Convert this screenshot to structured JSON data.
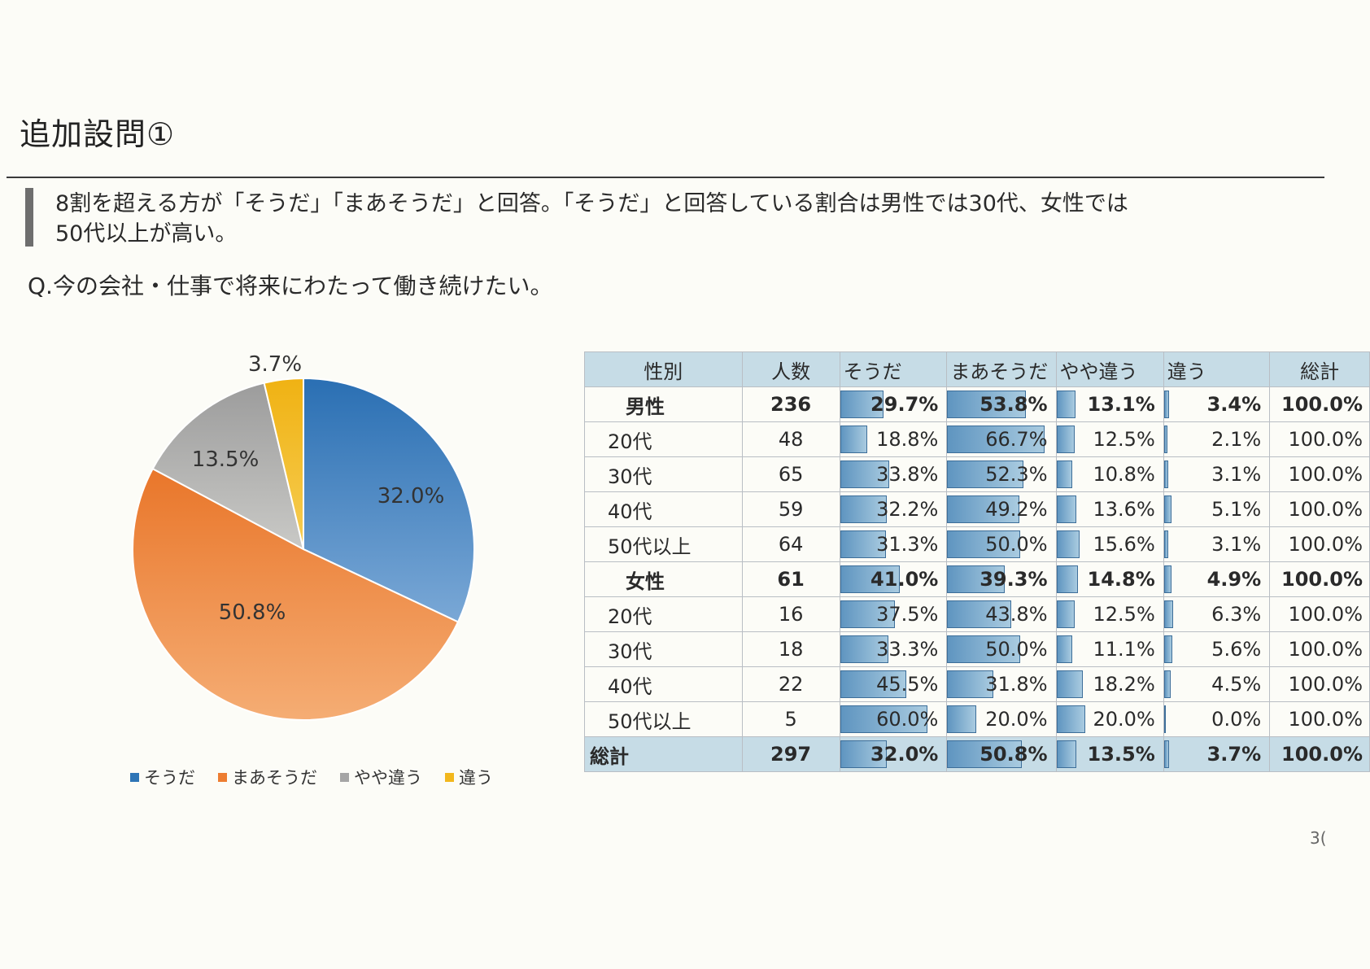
{
  "title": "追加設問①",
  "summary": {
    "line1": "8割を超える方が「そうだ」「まあそうだ」と回答。「そうだ」と回答している割合は男性では30代、女性では",
    "line2": "50代以上が高い。"
  },
  "question": "Q.今の会社・仕事で将来にわたって働き続けたい。",
  "colors": {
    "soda": "#2e75b6",
    "maa": "#ed7d31",
    "yaya": "#a5a5a5",
    "chigau": "#f2b71c",
    "header": "#c6dce6"
  },
  "chart_data": {
    "type": "pie",
    "title": "",
    "slices": [
      {
        "label": "そうだ",
        "value": 32.0,
        "text": "32.0%"
      },
      {
        "label": "まあそうだ",
        "value": 50.8,
        "text": "50.8%"
      },
      {
        "label": "やや違う",
        "value": 13.5,
        "text": "13.5%"
      },
      {
        "label": "違う",
        "value": 3.7,
        "text": "3.7%"
      }
    ],
    "legend": [
      "そうだ",
      "まあそうだ",
      "やや違う",
      "違う"
    ],
    "legend_position": "bottom"
  },
  "table": {
    "headers": [
      "性別",
      "人数",
      "そうだ",
      "まあそうだ",
      "やや違う",
      "違う",
      "総計"
    ],
    "rows": [
      {
        "label": "男性",
        "n": "236",
        "vals": [
          "29.7%",
          "53.8%",
          "13.1%",
          "3.4%"
        ],
        "total": "100.0%",
        "bold": true
      },
      {
        "label": "20代",
        "n": "48",
        "vals": [
          "18.8%",
          "66.7%",
          "12.5%",
          "2.1%"
        ],
        "total": "100.0%"
      },
      {
        "label": "30代",
        "n": "65",
        "vals": [
          "33.8%",
          "52.3%",
          "10.8%",
          "3.1%"
        ],
        "total": "100.0%"
      },
      {
        "label": "40代",
        "n": "59",
        "vals": [
          "32.2%",
          "49.2%",
          "13.6%",
          "5.1%"
        ],
        "total": "100.0%"
      },
      {
        "label": "50代以上",
        "n": "64",
        "vals": [
          "31.3%",
          "50.0%",
          "15.6%",
          "3.1%"
        ],
        "total": "100.0%"
      },
      {
        "label": "女性",
        "n": "61",
        "vals": [
          "41.0%",
          "39.3%",
          "14.8%",
          "4.9%"
        ],
        "total": "100.0%",
        "bold": true
      },
      {
        "label": "20代",
        "n": "16",
        "vals": [
          "37.5%",
          "43.8%",
          "12.5%",
          "6.3%"
        ],
        "total": "100.0%"
      },
      {
        "label": "30代",
        "n": "18",
        "vals": [
          "33.3%",
          "50.0%",
          "11.1%",
          "5.6%"
        ],
        "total": "100.0%"
      },
      {
        "label": "40代",
        "n": "22",
        "vals": [
          "45.5%",
          "31.8%",
          "18.2%",
          "4.5%"
        ],
        "total": "100.0%"
      },
      {
        "label": "50代以上",
        "n": "5",
        "vals": [
          "60.0%",
          "20.0%",
          "20.0%",
          "0.0%"
        ],
        "total": "100.0%"
      }
    ],
    "total_row": {
      "label": "総計",
      "n": "297",
      "vals": [
        "32.0%",
        "50.8%",
        "13.5%",
        "3.7%"
      ],
      "total": "100.0%"
    }
  },
  "page_number": "3("
}
